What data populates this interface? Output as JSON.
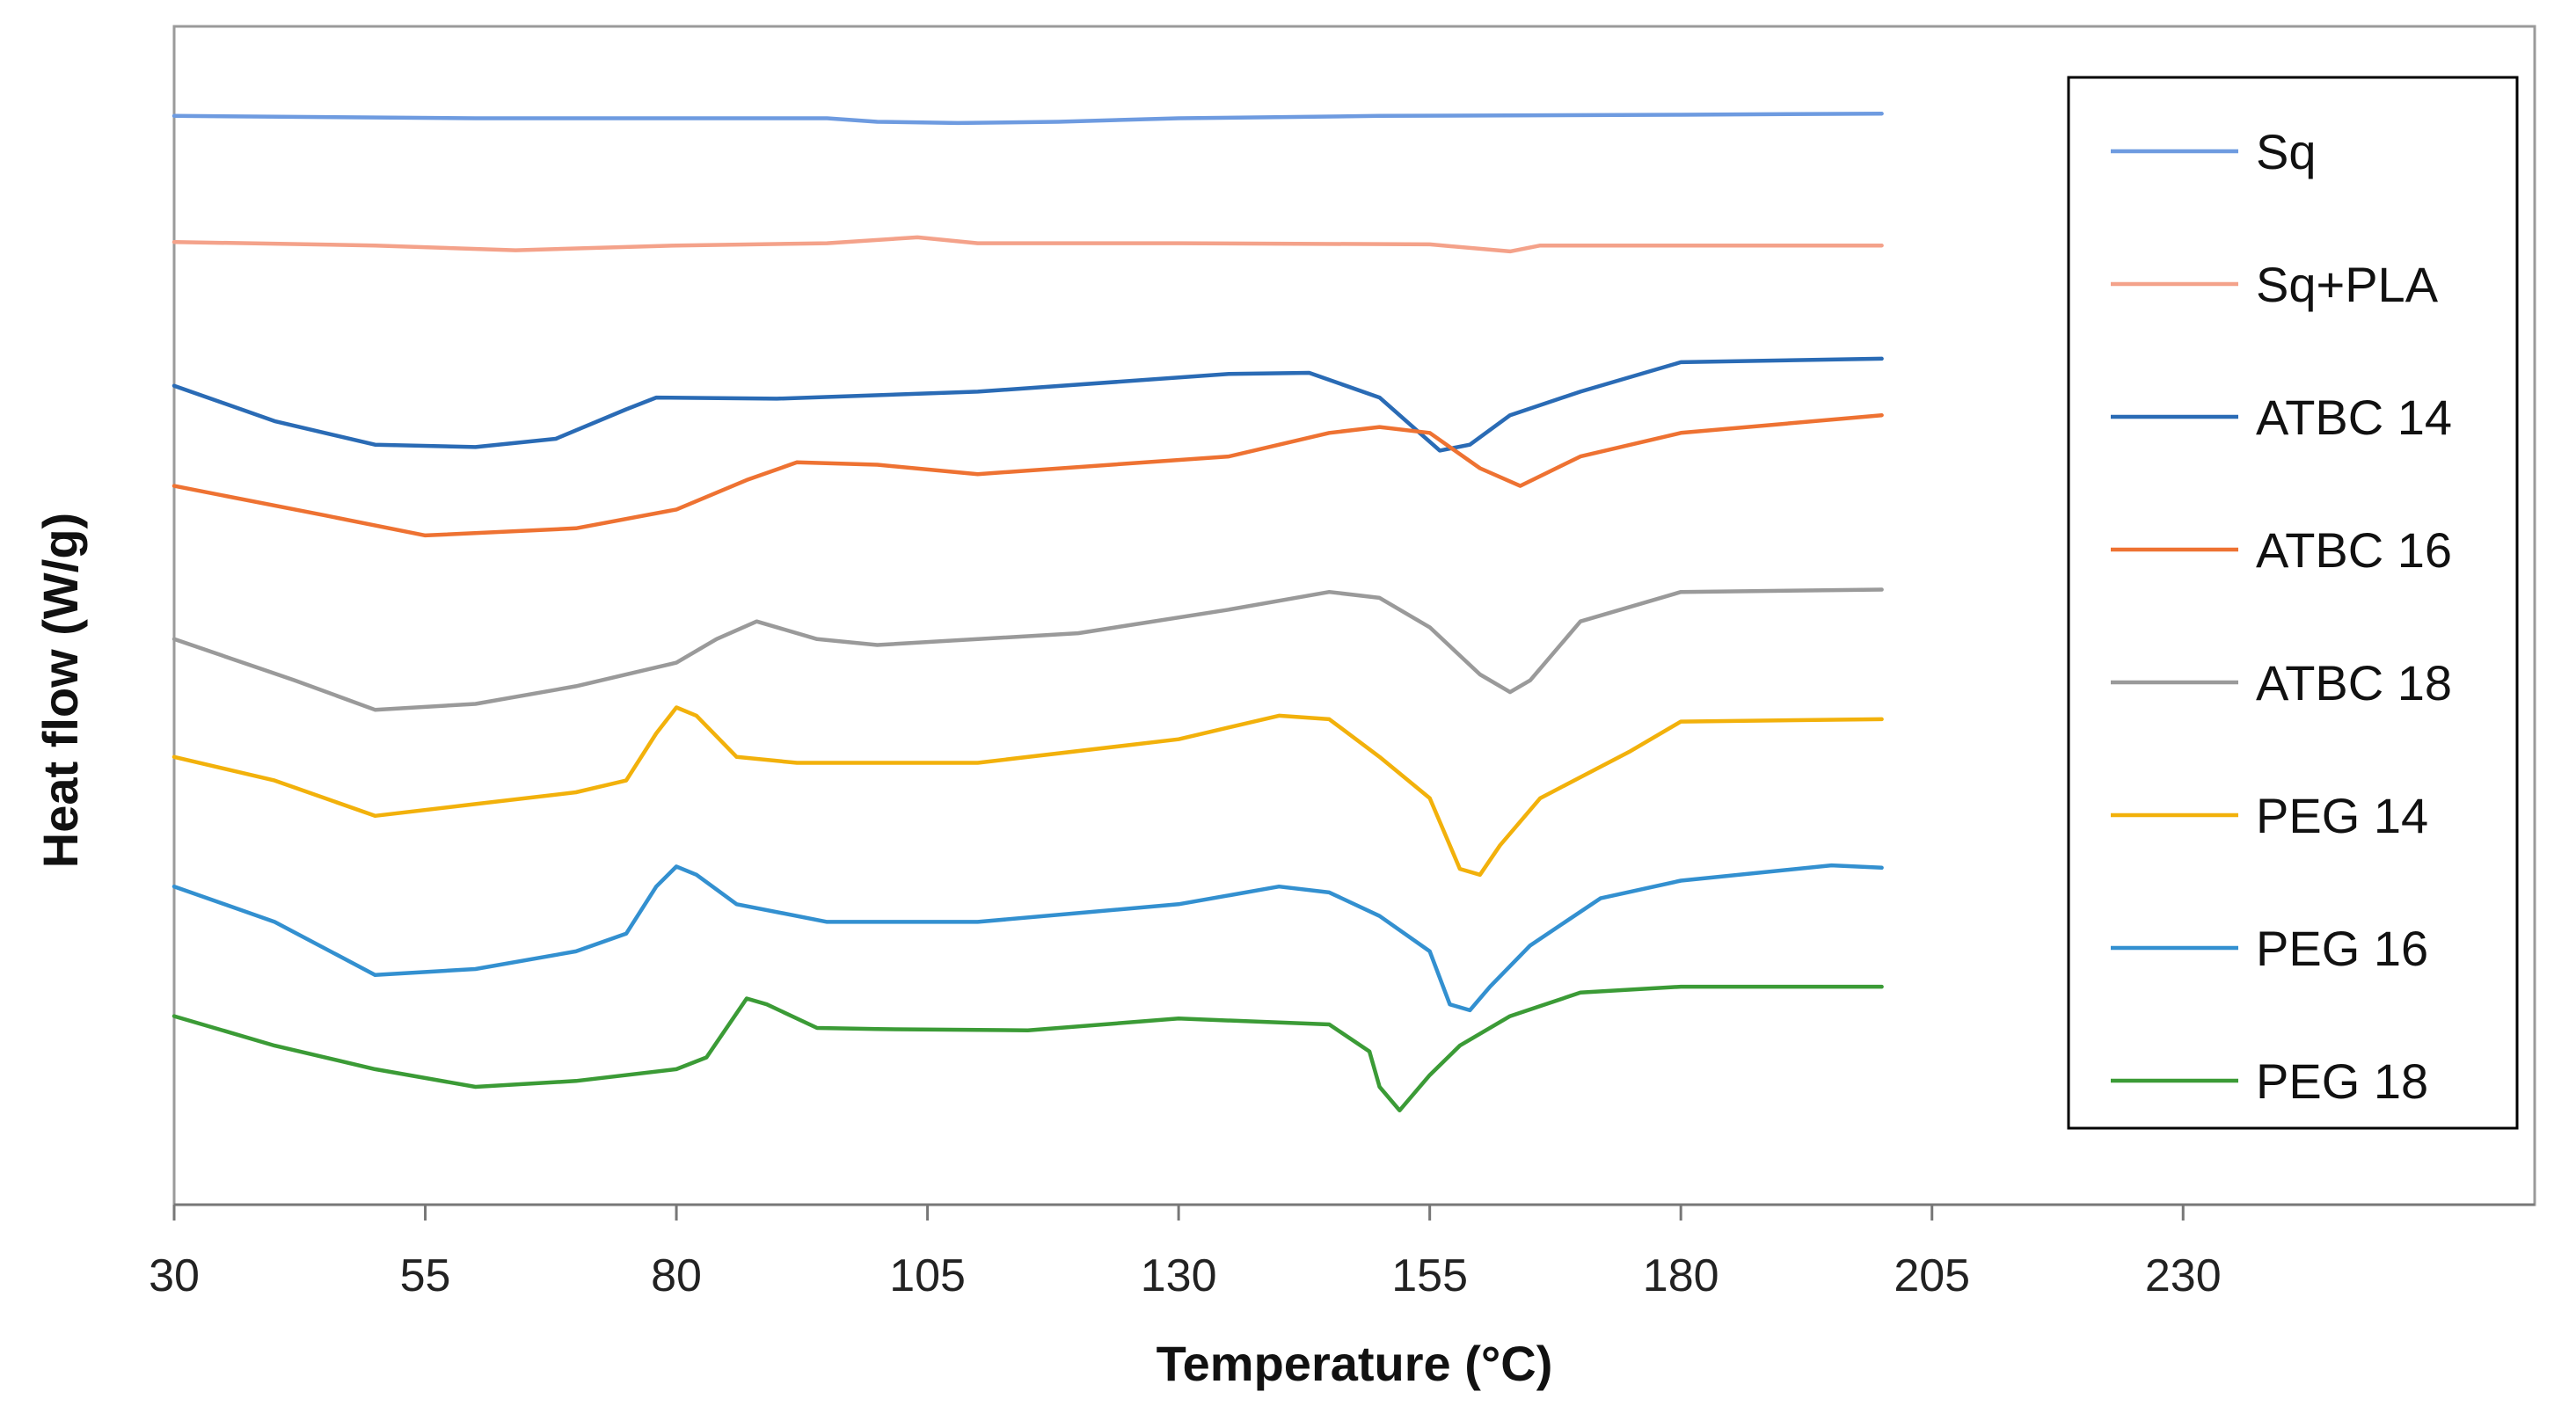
{
  "chart_data": {
    "type": "line",
    "title": "",
    "xlabel": "Temperature (°C)",
    "ylabel": "Heat flow (W/g)",
    "xlim": [
      30,
      265
    ],
    "x_ticks": [
      30,
      55,
      80,
      105,
      130,
      155,
      180,
      205,
      230
    ],
    "x_tick_labels": [
      "30",
      "55",
      "80",
      "105",
      "130",
      "155",
      "180",
      "205",
      "230"
    ],
    "ylim": [
      0,
      100
    ],
    "y_ticks_shown": false,
    "grid": false,
    "legend_position": "top-right",
    "series": [
      {
        "name": "Sq",
        "color": "#6e9be0",
        "x": [
          30,
          60,
          95,
          100,
          108,
          118,
          130,
          150,
          180,
          200
        ],
        "y": [
          92.4,
          92.2,
          92.2,
          91.9,
          91.8,
          91.9,
          92.2,
          92.4,
          92.5,
          92.6
        ]
      },
      {
        "name": "Sq+PLA",
        "color": "#f4a28a",
        "x": [
          30,
          50,
          64,
          80,
          95,
          104,
          110,
          130,
          155,
          163,
          166,
          175,
          200
        ],
        "y": [
          81.7,
          81.4,
          81.0,
          81.4,
          81.6,
          82.1,
          81.6,
          81.6,
          81.5,
          80.9,
          81.4,
          81.4,
          81.4
        ]
      },
      {
        "name": "ATBC 14",
        "color": "#2a6bb5",
        "x": [
          30,
          40,
          50,
          60,
          68,
          75,
          78,
          90,
          110,
          135,
          143,
          150,
          154,
          156,
          159,
          163,
          170,
          180,
          200
        ],
        "y": [
          69.5,
          66.5,
          64.5,
          64.3,
          65.0,
          67.5,
          68.5,
          68.4,
          69.0,
          70.5,
          70.6,
          68.5,
          65.5,
          64.0,
          64.5,
          67.0,
          69.0,
          71.5,
          71.8
        ]
      },
      {
        "name": "ATBC 16",
        "color": "#ee7232",
        "x": [
          30,
          45,
          55,
          70,
          80,
          87,
          92,
          100,
          110,
          135,
          145,
          150,
          155,
          160,
          164,
          170,
          180,
          200
        ],
        "y": [
          61.0,
          58.5,
          56.8,
          57.4,
          59.0,
          61.5,
          63.0,
          62.8,
          62.0,
          63.5,
          65.5,
          66.0,
          65.5,
          62.5,
          61.0,
          63.5,
          65.5,
          67.0
        ]
      },
      {
        "name": "ATBC 18",
        "color": "#9a9a9a",
        "x": [
          30,
          42,
          50,
          60,
          70,
          80,
          84,
          88,
          94,
          100,
          120,
          135,
          145,
          150,
          155,
          160,
          163,
          165,
          170,
          180,
          200
        ],
        "y": [
          48.0,
          44.5,
          42.0,
          42.5,
          44.0,
          46.0,
          48.0,
          49.5,
          48.0,
          47.5,
          48.5,
          50.5,
          52.0,
          51.5,
          49.0,
          45.0,
          43.5,
          44.5,
          49.5,
          52.0,
          52.2
        ]
      },
      {
        "name": "PEG 14",
        "color": "#f2b10b",
        "x": [
          30,
          40,
          50,
          60,
          70,
          75,
          78,
          80,
          82,
          86,
          92,
          110,
          130,
          140,
          145,
          150,
          155,
          158,
          160,
          162,
          166,
          175,
          180,
          200
        ],
        "y": [
          38.0,
          36.0,
          33.0,
          34.0,
          35.0,
          36.0,
          40.0,
          42.2,
          41.5,
          38.0,
          37.5,
          37.5,
          39.5,
          41.5,
          41.2,
          38.0,
          34.5,
          28.5,
          28.0,
          30.5,
          34.5,
          38.5,
          41.0,
          41.2
        ]
      },
      {
        "name": "PEG 16",
        "color": "#3390d0",
        "x": [
          30,
          40,
          50,
          60,
          70,
          75,
          78,
          80,
          82,
          86,
          95,
          110,
          130,
          140,
          145,
          150,
          155,
          157,
          159,
          161,
          165,
          172,
          180,
          195,
          200
        ],
        "y": [
          27.0,
          24.0,
          19.5,
          20.0,
          21.5,
          23.0,
          27.0,
          28.7,
          28.0,
          25.5,
          24.0,
          24.0,
          25.5,
          27.0,
          26.5,
          24.5,
          21.5,
          17.0,
          16.5,
          18.5,
          22.0,
          26.0,
          27.5,
          28.8,
          28.6
        ]
      },
      {
        "name": "PEG 18",
        "color": "#3b9b36",
        "x": [
          30,
          40,
          50,
          60,
          70,
          80,
          83,
          87,
          89,
          94,
          100,
          115,
          130,
          145,
          149,
          150,
          152,
          155,
          158,
          163,
          170,
          180,
          200
        ],
        "y": [
          16.0,
          13.5,
          11.5,
          10.0,
          10.5,
          11.5,
          12.5,
          17.5,
          17.0,
          15.0,
          14.9,
          14.8,
          15.8,
          15.3,
          13.0,
          10.0,
          8.0,
          11.0,
          13.5,
          16.0,
          18.0,
          18.5,
          18.5
        ]
      }
    ]
  },
  "legend": {
    "items": [
      "Sq",
      "Sq+PLA",
      "ATBC 14",
      "ATBC 16",
      "ATBC 18",
      "PEG 14",
      "PEG 16",
      "PEG 18"
    ]
  }
}
